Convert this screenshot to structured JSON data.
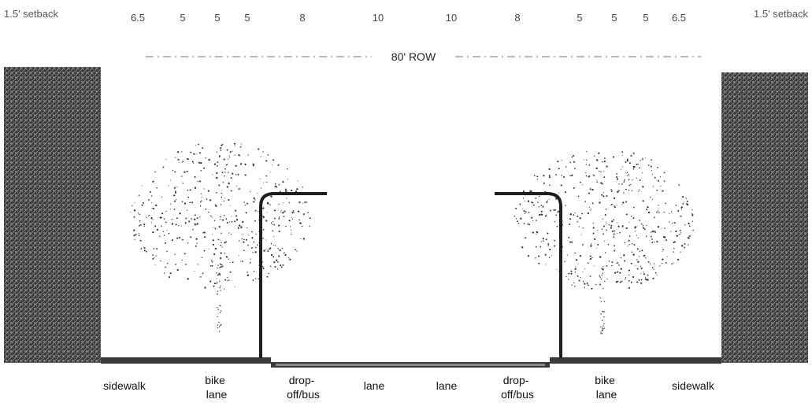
{
  "diagram": {
    "setback_left": "1.5' setback",
    "setback_right": "1.5' setback",
    "dimensions": [
      "6.5",
      "5",
      "5",
      "5",
      "8",
      "10",
      "10",
      "8",
      "5",
      "5",
      "5",
      "6.5"
    ],
    "row_label": "80' ROW",
    "zones": [
      {
        "lines": [
          "sidewalk"
        ]
      },
      {
        "lines": [
          "bike",
          "lane"
        ]
      },
      {
        "lines": [
          "drop-",
          "off/bus"
        ]
      },
      {
        "lines": [
          "lane"
        ]
      },
      {
        "lines": [
          "lane"
        ]
      },
      {
        "lines": [
          "drop-",
          "off/bus"
        ]
      },
      {
        "lines": [
          "bike",
          "lane"
        ]
      },
      {
        "lines": [
          "sidewalk"
        ]
      }
    ],
    "colors": {
      "building": "#2b2b2b",
      "ground": "#3a3a3a",
      "pole": "#1e1e1e",
      "tree": "#333333",
      "text": "#222222"
    }
  }
}
